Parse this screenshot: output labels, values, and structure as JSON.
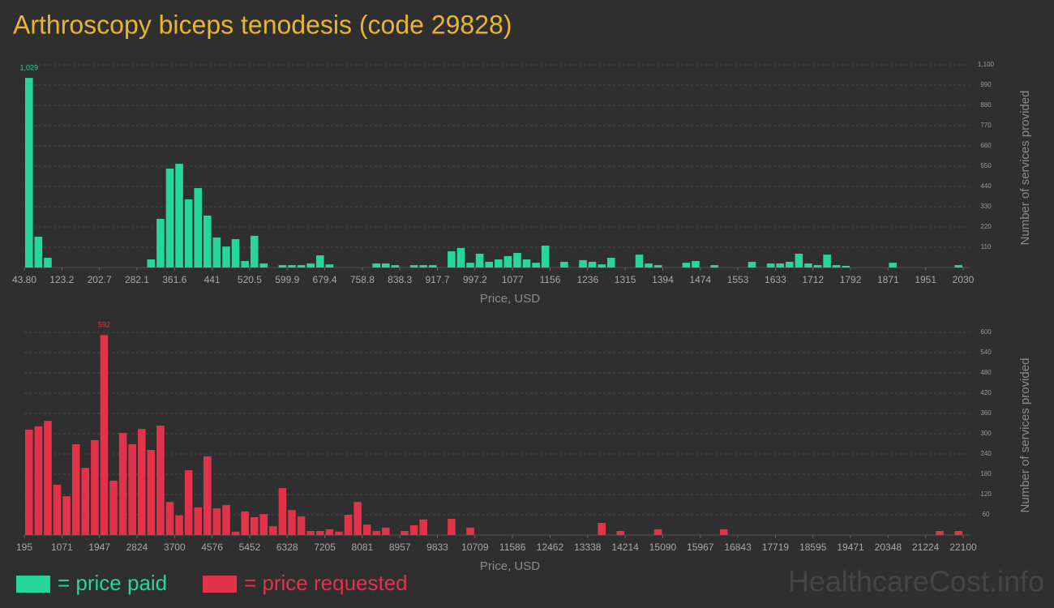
{
  "title": "Arthroscopy biceps tenodesis (code 29828)",
  "watermark": "HealthcareCost.info",
  "chart_data": [
    {
      "type": "histogram",
      "xlabel": "Price, USD",
      "ylabel": "Number of services provided",
      "legend_label": "= price paid",
      "color": "#27d69b",
      "grid": true,
      "bins": [
        43.8,
        63.66,
        83.52,
        103.39,
        123.25,
        143.11,
        162.97,
        182.83,
        202.7,
        222.56,
        242.42,
        262.28,
        282.14,
        302.01,
        321.87,
        341.73,
        361.59,
        381.45,
        401.32,
        421.18,
        441.04,
        460.9,
        480.76,
        500.63,
        520.49,
        540.35,
        560.21,
        580.07,
        599.94,
        619.8,
        639.66,
        659.52,
        679.38,
        699.25,
        719.11,
        738.97,
        758.83,
        778.69,
        798.56,
        818.42,
        838.28,
        858.14,
        878,
        897.87,
        917.73,
        937.59,
        957.45,
        977.31,
        997.18,
        1017.04,
        1036.9,
        1056.76,
        1076.62,
        1096.49,
        1116.35,
        1136.21,
        1156.07,
        1175.93,
        1195.8,
        1215.66,
        1235.52,
        1255.38,
        1275.24,
        1295.11,
        1314.97,
        1334.83,
        1354.69,
        1374.55,
        1394.42,
        1414.28,
        1434.14,
        1454,
        1473.86,
        1493.73,
        1513.59,
        1533.45,
        1553.31,
        1573.17,
        1593.04,
        1612.9,
        1632.76,
        1652.62,
        1672.48,
        1692.35,
        1712.21,
        1732.07,
        1751.93,
        1771.79,
        1791.66,
        1811.52,
        1831.38,
        1851.24,
        1871.1,
        1890.97,
        1910.83,
        1930.69,
        1950.55,
        1970.41,
        1990.28,
        2010.14,
        2030
      ],
      "values": [
        1029,
        167,
        53,
        0,
        0,
        0,
        0,
        0,
        0,
        0,
        0,
        0,
        0,
        44,
        264,
        537,
        563,
        370,
        431,
        282,
        163,
        114,
        154,
        35,
        172,
        22,
        0,
        13,
        13,
        13,
        22,
        66,
        17,
        0,
        0,
        0,
        0,
        22,
        22,
        13,
        0,
        13,
        13,
        13,
        0,
        88,
        106,
        26,
        75,
        31,
        44,
        62,
        79,
        44,
        26,
        119,
        0,
        31,
        0,
        40,
        31,
        17,
        53,
        0,
        0,
        70,
        22,
        13,
        0,
        0,
        26,
        35,
        0,
        13,
        0,
        0,
        0,
        31,
        0,
        22,
        22,
        31,
        75,
        22,
        13,
        70,
        13,
        9,
        0,
        0,
        0,
        0,
        26,
        0,
        0,
        0,
        0,
        0,
        0,
        13
      ],
      "value_labels": {
        "0": "1,029"
      },
      "xlim": [
        43.8,
        2030
      ],
      "xticks": [
        {
          "value": 43.8,
          "label": "43.80"
        },
        {
          "value": 123.25,
          "label": "123.2"
        },
        {
          "value": 202.7,
          "label": "202.7"
        },
        {
          "value": 282.14,
          "label": "282.1"
        },
        {
          "value": 361.59,
          "label": "361.6"
        },
        {
          "value": 441.04,
          "label": "441"
        },
        {
          "value": 520.49,
          "label": "520.5"
        },
        {
          "value": 599.94,
          "label": "599.9"
        },
        {
          "value": 679.38,
          "label": "679.4"
        },
        {
          "value": 758.83,
          "label": "758.8"
        },
        {
          "value": 838.28,
          "label": "838.3"
        },
        {
          "value": 917.73,
          "label": "917.7"
        },
        {
          "value": 997.18,
          "label": "997.2"
        },
        {
          "value": 1076.62,
          "label": "1077"
        },
        {
          "value": 1156.07,
          "label": "1156"
        },
        {
          "value": 1235.52,
          "label": "1236"
        },
        {
          "value": 1314.97,
          "label": "1315"
        },
        {
          "value": 1394.42,
          "label": "1394"
        },
        {
          "value": 1473.86,
          "label": "1474"
        },
        {
          "value": 1553.31,
          "label": "1553"
        },
        {
          "value": 1632.76,
          "label": "1633"
        },
        {
          "value": 1712.21,
          "label": "1712"
        },
        {
          "value": 1791.66,
          "label": "1792"
        },
        {
          "value": 1871.1,
          "label": "1871"
        },
        {
          "value": 1950.55,
          "label": "1951"
        },
        2030
      ],
      "ylim": [
        0,
        1100
      ],
      "yticks": [
        110,
        220,
        330,
        440,
        550,
        660,
        770,
        880,
        990,
        {
          "value": 1100,
          "label": "1,100"
        }
      ]
    },
    {
      "type": "histogram",
      "xlabel": "Price, USD",
      "ylabel": "Number of services provided",
      "legend_label": "= price requested",
      "color": "#e2334a",
      "grid": true,
      "bins": [
        195,
        414.05,
        633.1,
        852.15,
        1071.2,
        1290.25,
        1509.3,
        1728.35,
        1947.4,
        2166.45,
        2385.5,
        2604.55,
        2823.6,
        3042.65,
        3261.7,
        3480.75,
        3699.8,
        3918.85,
        4137.9,
        4356.95,
        4576,
        4795.05,
        5014.1,
        5233.15,
        5452.2,
        5671.25,
        5890.3,
        6109.35,
        6328.4,
        6547.45,
        6766.5,
        6985.55,
        7204.6,
        7423.65,
        7642.7,
        7861.75,
        8080.8,
        8299.85,
        8518.9,
        8737.95,
        8957,
        9176.05,
        9395.1,
        9614.15,
        9833.2,
        10052.25,
        10271.3,
        10490.35,
        10709.4,
        10928.45,
        11147.5,
        11366.55,
        11585.6,
        11804.65,
        12023.7,
        12242.75,
        12461.8,
        12680.85,
        12899.9,
        13118.95,
        13338,
        13557.05,
        13776.1,
        13995.15,
        14214.2,
        14433.25,
        14652.3,
        14871.35,
        15090.4,
        15309.45,
        15528.5,
        15747.55,
        15966.6,
        16185.65,
        16404.7,
        16623.75,
        16842.8,
        17061.85,
        17280.9,
        17499.95,
        17719,
        17938.05,
        18157.1,
        18376.15,
        18595.2,
        18814.25,
        19033.3,
        19252.35,
        19471.4,
        19690.45,
        19909.5,
        20128.55,
        20347.6,
        20566.65,
        20785.7,
        21004.75,
        21223.8,
        21442.85,
        21661.9,
        21880.95,
        22100
      ],
      "values": [
        312,
        322,
        338,
        149,
        115,
        269,
        199,
        281,
        592,
        161,
        302,
        269,
        314,
        252,
        324,
        98,
        58,
        192,
        82,
        233,
        79,
        89,
        10,
        70,
        53,
        62,
        26,
        139,
        74,
        55,
        12,
        12,
        17,
        10,
        60,
        98,
        31,
        12,
        22,
        0,
        12,
        29,
        46,
        0,
        0,
        48,
        0,
        22,
        0,
        0,
        0,
        0,
        0,
        0,
        0,
        0,
        0,
        0,
        0,
        0,
        0,
        36,
        0,
        12,
        0,
        0,
        0,
        17,
        0,
        0,
        0,
        0,
        0,
        0,
        17,
        0,
        0,
        0,
        0,
        0,
        0,
        0,
        0,
        0,
        0,
        0,
        0,
        0,
        0,
        0,
        0,
        0,
        0,
        0,
        0,
        0,
        0,
        12,
        0,
        12
      ],
      "value_labels": {
        "8": "592"
      },
      "xlim": [
        195,
        22100
      ],
      "xticks": [
        195,
        {
          "value": 1071.2,
          "label": "1071"
        },
        {
          "value": 1947.4,
          "label": "1947"
        },
        {
          "value": 2823.6,
          "label": "2824"
        },
        {
          "value": 3699.8,
          "label": "3700"
        },
        4576,
        {
          "value": 5452.2,
          "label": "5452"
        },
        {
          "value": 6328.4,
          "label": "6328"
        },
        {
          "value": 7204.6,
          "label": "7205"
        },
        {
          "value": 8080.8,
          "label": "8081"
        },
        8957,
        {
          "value": 9833.2,
          "label": "9833"
        },
        {
          "value": 10709.4,
          "label": "10709"
        },
        {
          "value": 11585.6,
          "label": "11586"
        },
        {
          "value": 12461.8,
          "label": "12462"
        },
        13338,
        {
          "value": 14214.2,
          "label": "14214"
        },
        {
          "value": 15090.4,
          "label": "15090"
        },
        {
          "value": 15966.6,
          "label": "15967"
        },
        {
          "value": 16842.8,
          "label": "16843"
        },
        17719,
        {
          "value": 18595.2,
          "label": "18595"
        },
        {
          "value": 19471.4,
          "label": "19471"
        },
        {
          "value": 20347.6,
          "label": "20348"
        },
        {
          "value": 21223.8,
          "label": "21224"
        },
        22100
      ],
      "ylim": [
        0,
        600
      ],
      "yticks": [
        60,
        120,
        180,
        240,
        300,
        360,
        420,
        480,
        540,
        600
      ]
    }
  ]
}
